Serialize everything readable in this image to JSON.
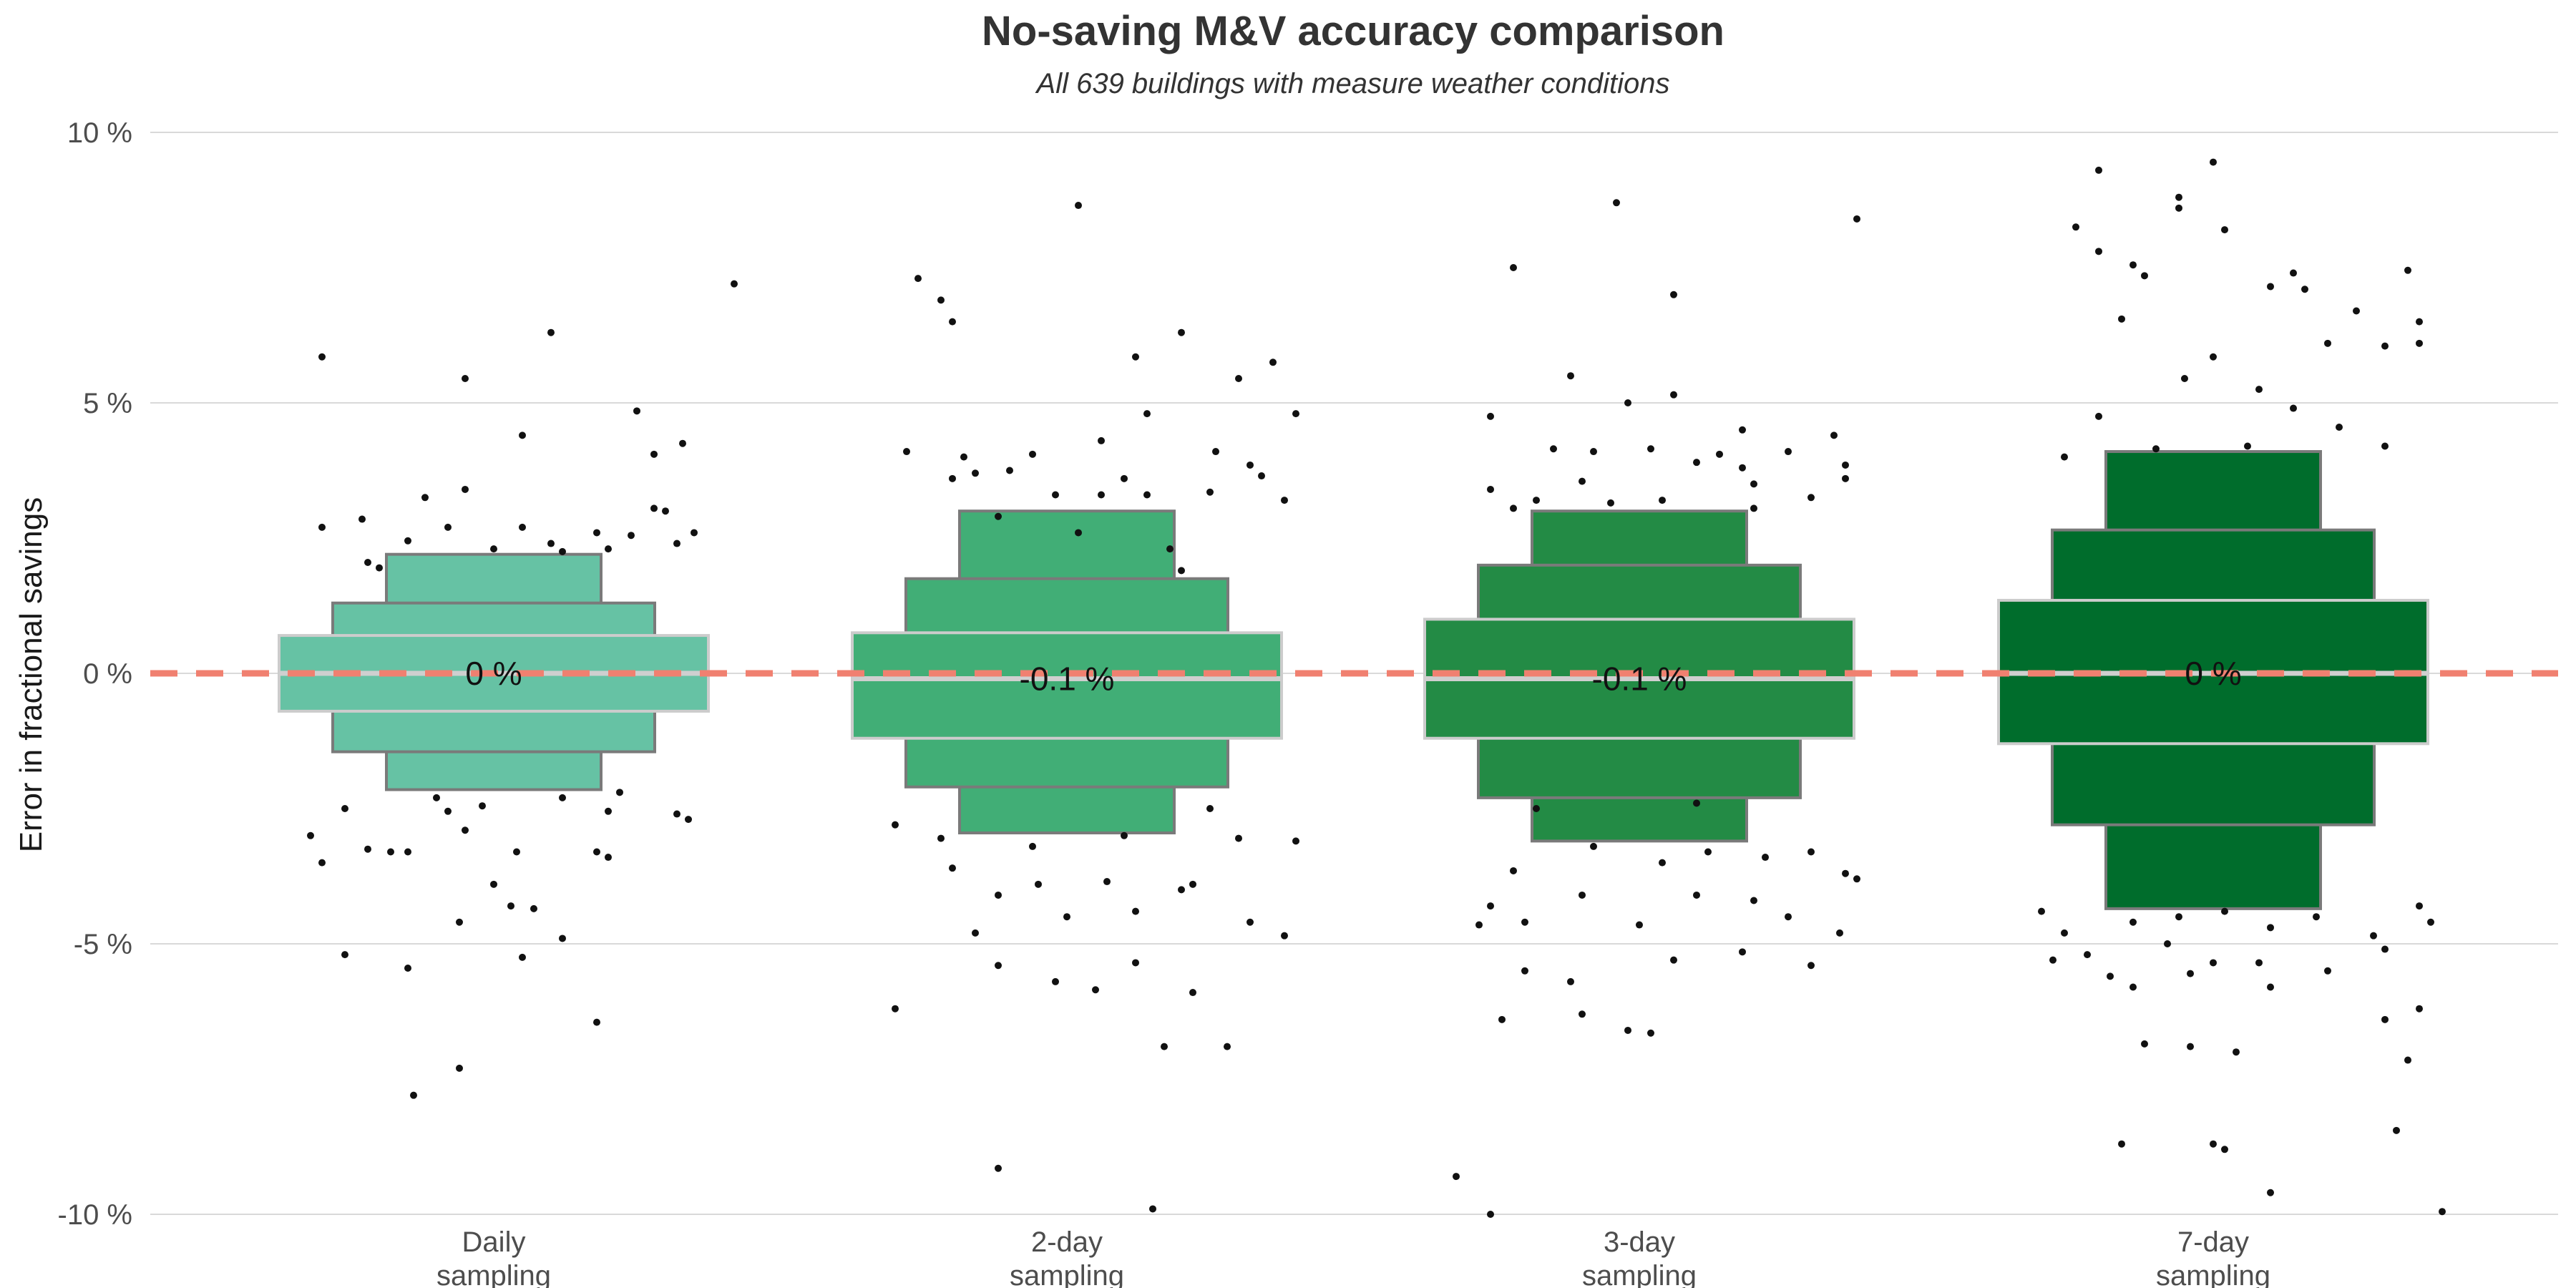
{
  "chart_data": {
    "type": "boxplot",
    "title": "No-saving M&V accuracy comparison",
    "subtitle": "All 639 buildings with measure weather conditions",
    "ylabel": "Error in fractional savings",
    "xlabel": "",
    "ylim": [
      -10,
      10
    ],
    "yticks": [
      10,
      5,
      0,
      -5,
      -10
    ],
    "ytick_labels": [
      "10 %",
      "5 %",
      "0 %",
      "-5 %",
      "-10 %"
    ],
    "reference_line": {
      "y": 0,
      "color": "#F08070",
      "style": "dashed"
    },
    "grid": true,
    "categories": [
      {
        "label_line1": "Daily",
        "label_line2": "sampling",
        "color": "#66C2A4",
        "median": 0,
        "median_label": "0 %",
        "levels": [
          [
            -0.7,
            0.7
          ],
          [
            -1.45,
            1.3
          ],
          [
            -2.15,
            2.2
          ]
        ],
        "outliers": [
          [
            -0.23,
            2.85
          ],
          [
            -0.2,
            1.95
          ],
          [
            0.28,
            3.05
          ],
          [
            -0.08,
            2.7
          ],
          [
            0.12,
            2.25
          ],
          [
            0.35,
            2.6
          ],
          [
            -0.15,
            2.45
          ],
          [
            0.05,
            2.7
          ],
          [
            0.24,
            2.55
          ],
          [
            -0.22,
            2.05
          ],
          [
            0.1,
            2.4
          ],
          [
            0.32,
            2.4
          ],
          [
            -0.05,
            3.4
          ],
          [
            0.18,
            2.6
          ],
          [
            -0.3,
            5.85
          ],
          [
            -0.05,
            5.45
          ],
          [
            0.1,
            6.3
          ],
          [
            0.25,
            4.85
          ],
          [
            0.28,
            4.05
          ],
          [
            0.05,
            4.4
          ],
          [
            0.33,
            4.25
          ],
          [
            0.42,
            7.2
          ],
          [
            -0.3,
            2.7
          ],
          [
            0.0,
            2.3
          ],
          [
            0.2,
            2.3
          ],
          [
            -0.12,
            3.25
          ],
          [
            0.3,
            3.0
          ],
          [
            -0.26,
            -2.5
          ],
          [
            -0.1,
            -2.3
          ],
          [
            0.12,
            -2.3
          ],
          [
            0.2,
            -2.55
          ],
          [
            0.34,
            -2.7
          ],
          [
            -0.3,
            -3.5
          ],
          [
            -0.18,
            -3.3
          ],
          [
            0.04,
            -3.3
          ],
          [
            -0.05,
            -2.9
          ],
          [
            0.18,
            -3.3
          ],
          [
            0.22,
            -2.2
          ],
          [
            -0.08,
            -2.55
          ],
          [
            0.0,
            -3.9
          ],
          [
            0.03,
            -4.3
          ],
          [
            -0.06,
            -4.6
          ],
          [
            -0.15,
            -3.3
          ],
          [
            -0.32,
            -3.0
          ],
          [
            -0.26,
            -5.2
          ],
          [
            -0.15,
            -5.45
          ],
          [
            0.05,
            -5.25
          ],
          [
            0.12,
            -4.9
          ],
          [
            0.2,
            -3.4
          ],
          [
            0.32,
            -2.6
          ],
          [
            0.18,
            -6.45
          ],
          [
            -0.06,
            -7.3
          ],
          [
            -0.14,
            -7.8
          ],
          [
            0.07,
            -4.35
          ],
          [
            -0.22,
            -3.25
          ],
          [
            -0.02,
            -2.45
          ]
        ]
      },
      {
        "label_line1": "2-day",
        "label_line2": "sampling",
        "color": "#41AE76",
        "median": -0.1,
        "median_label": "-0.1 %",
        "levels": [
          [
            -1.2,
            0.75
          ],
          [
            -2.1,
            1.75
          ],
          [
            -2.95,
            3.0
          ]
        ],
        "outliers": [
          [
            -0.28,
            4.1
          ],
          [
            -0.18,
            4.0
          ],
          [
            -0.06,
            4.05
          ],
          [
            0.06,
            4.3
          ],
          [
            0.14,
            4.8
          ],
          [
            0.26,
            4.1
          ],
          [
            0.34,
            3.65
          ],
          [
            -0.2,
            3.6
          ],
          [
            -0.02,
            3.3
          ],
          [
            0.1,
            3.6
          ],
          [
            0.25,
            3.35
          ],
          [
            -0.22,
            6.9
          ],
          [
            -0.2,
            6.5
          ],
          [
            -0.26,
            7.3
          ],
          [
            0.02,
            8.65
          ],
          [
            0.12,
            5.85
          ],
          [
            0.2,
            6.3
          ],
          [
            0.3,
            5.45
          ],
          [
            0.36,
            5.75
          ],
          [
            0.4,
            4.8
          ],
          [
            0.32,
            3.85
          ],
          [
            0.38,
            3.2
          ],
          [
            -0.1,
            3.75
          ],
          [
            0.14,
            3.3
          ],
          [
            -0.16,
            3.7
          ],
          [
            0.06,
            3.3
          ],
          [
            -0.12,
            2.9
          ],
          [
            0.18,
            2.3
          ],
          [
            0.2,
            1.9
          ],
          [
            0.02,
            2.6
          ],
          [
            -0.22,
            -3.05
          ],
          [
            -0.06,
            -3.2
          ],
          [
            0.1,
            -3.0
          ],
          [
            0.22,
            -3.9
          ],
          [
            0.3,
            -3.05
          ],
          [
            0.4,
            -3.1
          ],
          [
            -0.2,
            -3.6
          ],
          [
            -0.12,
            -4.1
          ],
          [
            0.0,
            -4.5
          ],
          [
            0.12,
            -4.4
          ],
          [
            0.2,
            -4.0
          ],
          [
            0.32,
            -4.6
          ],
          [
            0.38,
            -4.85
          ],
          [
            -0.16,
            -4.8
          ],
          [
            -0.05,
            -3.9
          ],
          [
            0.07,
            -3.85
          ],
          [
            -0.12,
            -5.4
          ],
          [
            0.05,
            -5.85
          ],
          [
            -0.02,
            -5.7
          ],
          [
            0.12,
            -5.35
          ],
          [
            0.22,
            -5.9
          ],
          [
            -0.3,
            -6.2
          ],
          [
            0.28,
            -6.9
          ],
          [
            0.17,
            -6.9
          ],
          [
            -0.12,
            -9.15
          ],
          [
            0.15,
            -9.9
          ],
          [
            -0.3,
            -2.8
          ],
          [
            0.25,
            -2.5
          ]
        ]
      },
      {
        "label_line1": "3-day",
        "label_line2": "sampling",
        "color": "#238B45",
        "median": -0.1,
        "median_label": "-0.1 %",
        "levels": [
          [
            -1.2,
            1.0
          ],
          [
            -2.3,
            2.0
          ],
          [
            -3.1,
            3.0
          ]
        ],
        "outliers": [
          [
            -0.26,
            3.4
          ],
          [
            -0.18,
            3.2
          ],
          [
            -0.1,
            3.55
          ],
          [
            -0.05,
            3.15
          ],
          [
            0.04,
            3.2
          ],
          [
            0.1,
            3.9
          ],
          [
            0.2,
            3.5
          ],
          [
            0.3,
            3.25
          ],
          [
            0.36,
            3.6
          ],
          [
            -0.22,
            3.05
          ],
          [
            0.14,
            4.05
          ],
          [
            -0.08,
            4.1
          ],
          [
            0.02,
            4.15
          ],
          [
            0.18,
            4.5
          ],
          [
            0.26,
            4.1
          ],
          [
            -0.26,
            4.75
          ],
          [
            -0.15,
            4.15
          ],
          [
            -0.02,
            5.0
          ],
          [
            0.06,
            5.15
          ],
          [
            -0.12,
            5.5
          ],
          [
            0.18,
            3.8
          ],
          [
            0.34,
            4.4
          ],
          [
            0.36,
            3.85
          ],
          [
            -0.22,
            7.5
          ],
          [
            0.06,
            7.0
          ],
          [
            -0.04,
            8.7
          ],
          [
            0.2,
            3.05
          ],
          [
            0.38,
            8.4
          ],
          [
            -0.22,
            -3.65
          ],
          [
            -0.08,
            -3.2
          ],
          [
            0.04,
            -3.5
          ],
          [
            0.12,
            -3.3
          ],
          [
            0.22,
            -3.4
          ],
          [
            0.3,
            -3.3
          ],
          [
            0.38,
            -3.8
          ],
          [
            -0.26,
            -4.3
          ],
          [
            -0.2,
            -4.6
          ],
          [
            -0.1,
            -4.1
          ],
          [
            0.1,
            -4.1
          ],
          [
            0.2,
            -4.2
          ],
          [
            0.26,
            -4.5
          ],
          [
            0.35,
            -4.8
          ],
          [
            -0.28,
            -4.65
          ],
          [
            -0.2,
            -5.5
          ],
          [
            -0.12,
            -5.7
          ],
          [
            0.0,
            -4.65
          ],
          [
            0.06,
            -5.3
          ],
          [
            0.18,
            -5.15
          ],
          [
            0.3,
            -5.4
          ],
          [
            -0.24,
            -6.4
          ],
          [
            -0.1,
            -6.3
          ],
          [
            -0.02,
            -6.6
          ],
          [
            0.02,
            -6.65
          ],
          [
            -0.32,
            -9.3
          ],
          [
            -0.26,
            -10.0
          ],
          [
            -0.18,
            -2.5
          ],
          [
            0.1,
            -2.4
          ],
          [
            0.36,
            -3.7
          ]
        ]
      },
      {
        "label_line1": "7-day",
        "label_line2": "sampling",
        "color": "#006D2C",
        "median": 0,
        "median_label": "0 %",
        "levels": [
          [
            -1.3,
            1.35
          ],
          [
            -2.8,
            2.65
          ],
          [
            -4.35,
            4.1
          ]
        ],
        "outliers": [
          [
            -0.26,
            4.0
          ],
          [
            -0.1,
            4.15
          ],
          [
            0.06,
            4.2
          ],
          [
            0.22,
            4.55
          ],
          [
            0.3,
            4.2
          ],
          [
            -0.2,
            4.75
          ],
          [
            0.0,
            5.85
          ],
          [
            -0.05,
            5.45
          ],
          [
            0.08,
            5.25
          ],
          [
            0.14,
            4.9
          ],
          [
            0.2,
            6.1
          ],
          [
            0.25,
            6.7
          ],
          [
            0.3,
            6.05
          ],
          [
            0.36,
            6.1
          ],
          [
            0.34,
            7.45
          ],
          [
            0.14,
            7.4
          ],
          [
            0.1,
            7.15
          ],
          [
            0.02,
            8.2
          ],
          [
            -0.06,
            8.6
          ],
          [
            0.0,
            9.45
          ],
          [
            -0.14,
            7.55
          ],
          [
            -0.12,
            7.35
          ],
          [
            -0.2,
            7.8
          ],
          [
            -0.24,
            8.25
          ],
          [
            -0.16,
            6.55
          ],
          [
            -0.06,
            8.8
          ],
          [
            -0.2,
            9.3
          ],
          [
            0.16,
            7.1
          ],
          [
            0.36,
            6.5
          ],
          [
            -0.26,
            -4.8
          ],
          [
            -0.22,
            -5.2
          ],
          [
            -0.14,
            -4.6
          ],
          [
            -0.06,
            -4.5
          ],
          [
            0.02,
            -4.4
          ],
          [
            0.1,
            -4.7
          ],
          [
            0.18,
            -4.5
          ],
          [
            0.28,
            -4.85
          ],
          [
            0.38,
            -4.6
          ],
          [
            -0.28,
            -5.3
          ],
          [
            -0.18,
            -5.6
          ],
          [
            -0.08,
            -5.0
          ],
          [
            0.0,
            -5.35
          ],
          [
            0.08,
            -5.35
          ],
          [
            0.2,
            -5.5
          ],
          [
            0.3,
            -5.1
          ],
          [
            -0.14,
            -5.8
          ],
          [
            -0.04,
            -5.55
          ],
          [
            0.1,
            -5.8
          ],
          [
            -0.12,
            -6.85
          ],
          [
            -0.04,
            -6.9
          ],
          [
            0.04,
            -7.0
          ],
          [
            0.3,
            -6.4
          ],
          [
            0.36,
            -6.2
          ],
          [
            0.34,
            -7.15
          ],
          [
            -0.16,
            -8.7
          ],
          [
            0.0,
            -8.7
          ],
          [
            0.02,
            -8.8
          ],
          [
            0.1,
            -9.6
          ],
          [
            0.32,
            -8.45
          ],
          [
            0.4,
            -9.95
          ],
          [
            -0.3,
            -4.4
          ],
          [
            0.36,
            -4.3
          ]
        ]
      }
    ]
  }
}
